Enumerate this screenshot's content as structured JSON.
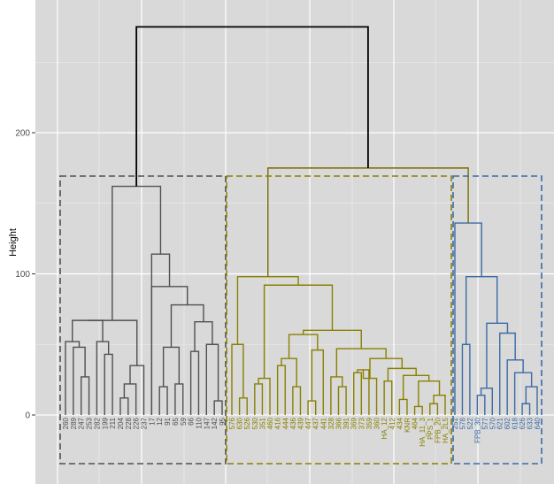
{
  "chart_data": {
    "type": "dendrogram",
    "title": "",
    "xlabel": "",
    "ylabel": "Height",
    "ylim": [
      -35,
      290
    ],
    "y_ticks": [
      0,
      100,
      200
    ],
    "grid": true,
    "background": "#d9d9d9",
    "root_height": 275,
    "clusters": [
      {
        "color": "#505050",
        "height": 162,
        "leaves": [
          "260",
          "289",
          "247",
          "253",
          "282",
          "199",
          "211",
          "204",
          "228",
          "226",
          "237",
          "17",
          "12",
          "91",
          "65",
          "59",
          "66",
          "110",
          "147",
          "142",
          "95"
        ]
      },
      {
        "color": "#8a8000",
        "height": 98,
        "leaves": [
          "576",
          "630",
          "526",
          "530",
          "351",
          "460",
          "416",
          "444",
          "436",
          "439",
          "447",
          "437",
          "441",
          "328",
          "366",
          "391",
          "369",
          "373",
          "359",
          "360",
          "HA_12",
          "412",
          "434",
          "KNR",
          "464",
          "HA_11_3",
          "PPS_1",
          "FPB_20",
          "HA_2L5"
        ]
      },
      {
        "color": "#3a6ba5",
        "height": 136,
        "leaves": [
          "251",
          "578",
          "522",
          "FPB_30",
          "577",
          "570",
          "621",
          "602",
          "618",
          "626",
          "633",
          "640"
        ]
      }
    ],
    "merges": [
      {
        "members": [
          "olive",
          "blue"
        ],
        "height": 175
      },
      {
        "members": [
          "gray",
          "olive+blue"
        ],
        "height": 275
      }
    ]
  }
}
